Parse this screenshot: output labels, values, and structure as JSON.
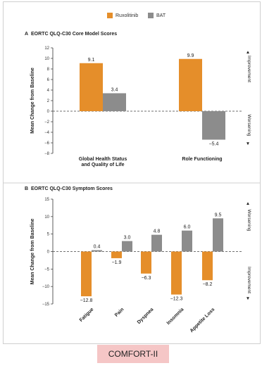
{
  "legend": {
    "items": [
      {
        "label": "Ruxolitinib",
        "color": "#e58e2a"
      },
      {
        "label": "BAT",
        "color": "#8c8c8c"
      }
    ]
  },
  "footer": {
    "label": "COMFORT-II"
  },
  "chart_data": [
    {
      "type": "bar",
      "panel_letter": "A",
      "title": "EORTC QLQ-C30 Core Model Scores",
      "ylabel": "Mean Change from Baseline",
      "ylim": [
        -8,
        12
      ],
      "yticks": [
        12,
        10,
        8,
        6,
        4,
        2,
        0,
        -2,
        -4,
        -6,
        -8
      ],
      "categories": [
        "Global Health Status and Quality of Life",
        "Role Functioning"
      ],
      "category_lines": [
        [
          "Global Health Status",
          "and Quality of Life"
        ],
        [
          "Role Functioning"
        ]
      ],
      "series": [
        {
          "name": "Ruxolitinib",
          "values": [
            9.1,
            9.9
          ],
          "labels": [
            "9.1",
            "9.9"
          ]
        },
        {
          "name": "BAT",
          "values": [
            3.4,
            -5.4
          ],
          "labels": [
            "3.4",
            "−5.4"
          ]
        }
      ],
      "side_labels": {
        "top": "Improvement",
        "bottom": "Worsening"
      },
      "zero_line": "dashed",
      "grid": false
    },
    {
      "type": "bar",
      "panel_letter": "B",
      "title": "EORTC QLQ-C30 Symptom Scores",
      "ylabel": "Mean Change from Baseline",
      "ylim": [
        -15,
        15
      ],
      "yticks": [
        15,
        10,
        5,
        0,
        -5,
        -10,
        -15
      ],
      "categories": [
        "Fatigue",
        "Pain",
        "Dyspnea",
        "Insomnia",
        "Appetite Loss"
      ],
      "series": [
        {
          "name": "Ruxolitinib",
          "values": [
            -12.8,
            -1.9,
            -6.3,
            -12.3,
            -8.2
          ],
          "labels": [
            "−12.8",
            "−1.9",
            "−6.3",
            "−12.3",
            "−8.2"
          ]
        },
        {
          "name": "BAT",
          "values": [
            0.4,
            3.0,
            4.8,
            6.0,
            9.5
          ],
          "labels": [
            "0.4",
            "3.0",
            "4.8",
            "6.0",
            "9.5"
          ]
        }
      ],
      "side_labels": {
        "top": "Worsening",
        "bottom": "Improvement"
      },
      "zero_line": "dashed",
      "grid": false
    }
  ]
}
